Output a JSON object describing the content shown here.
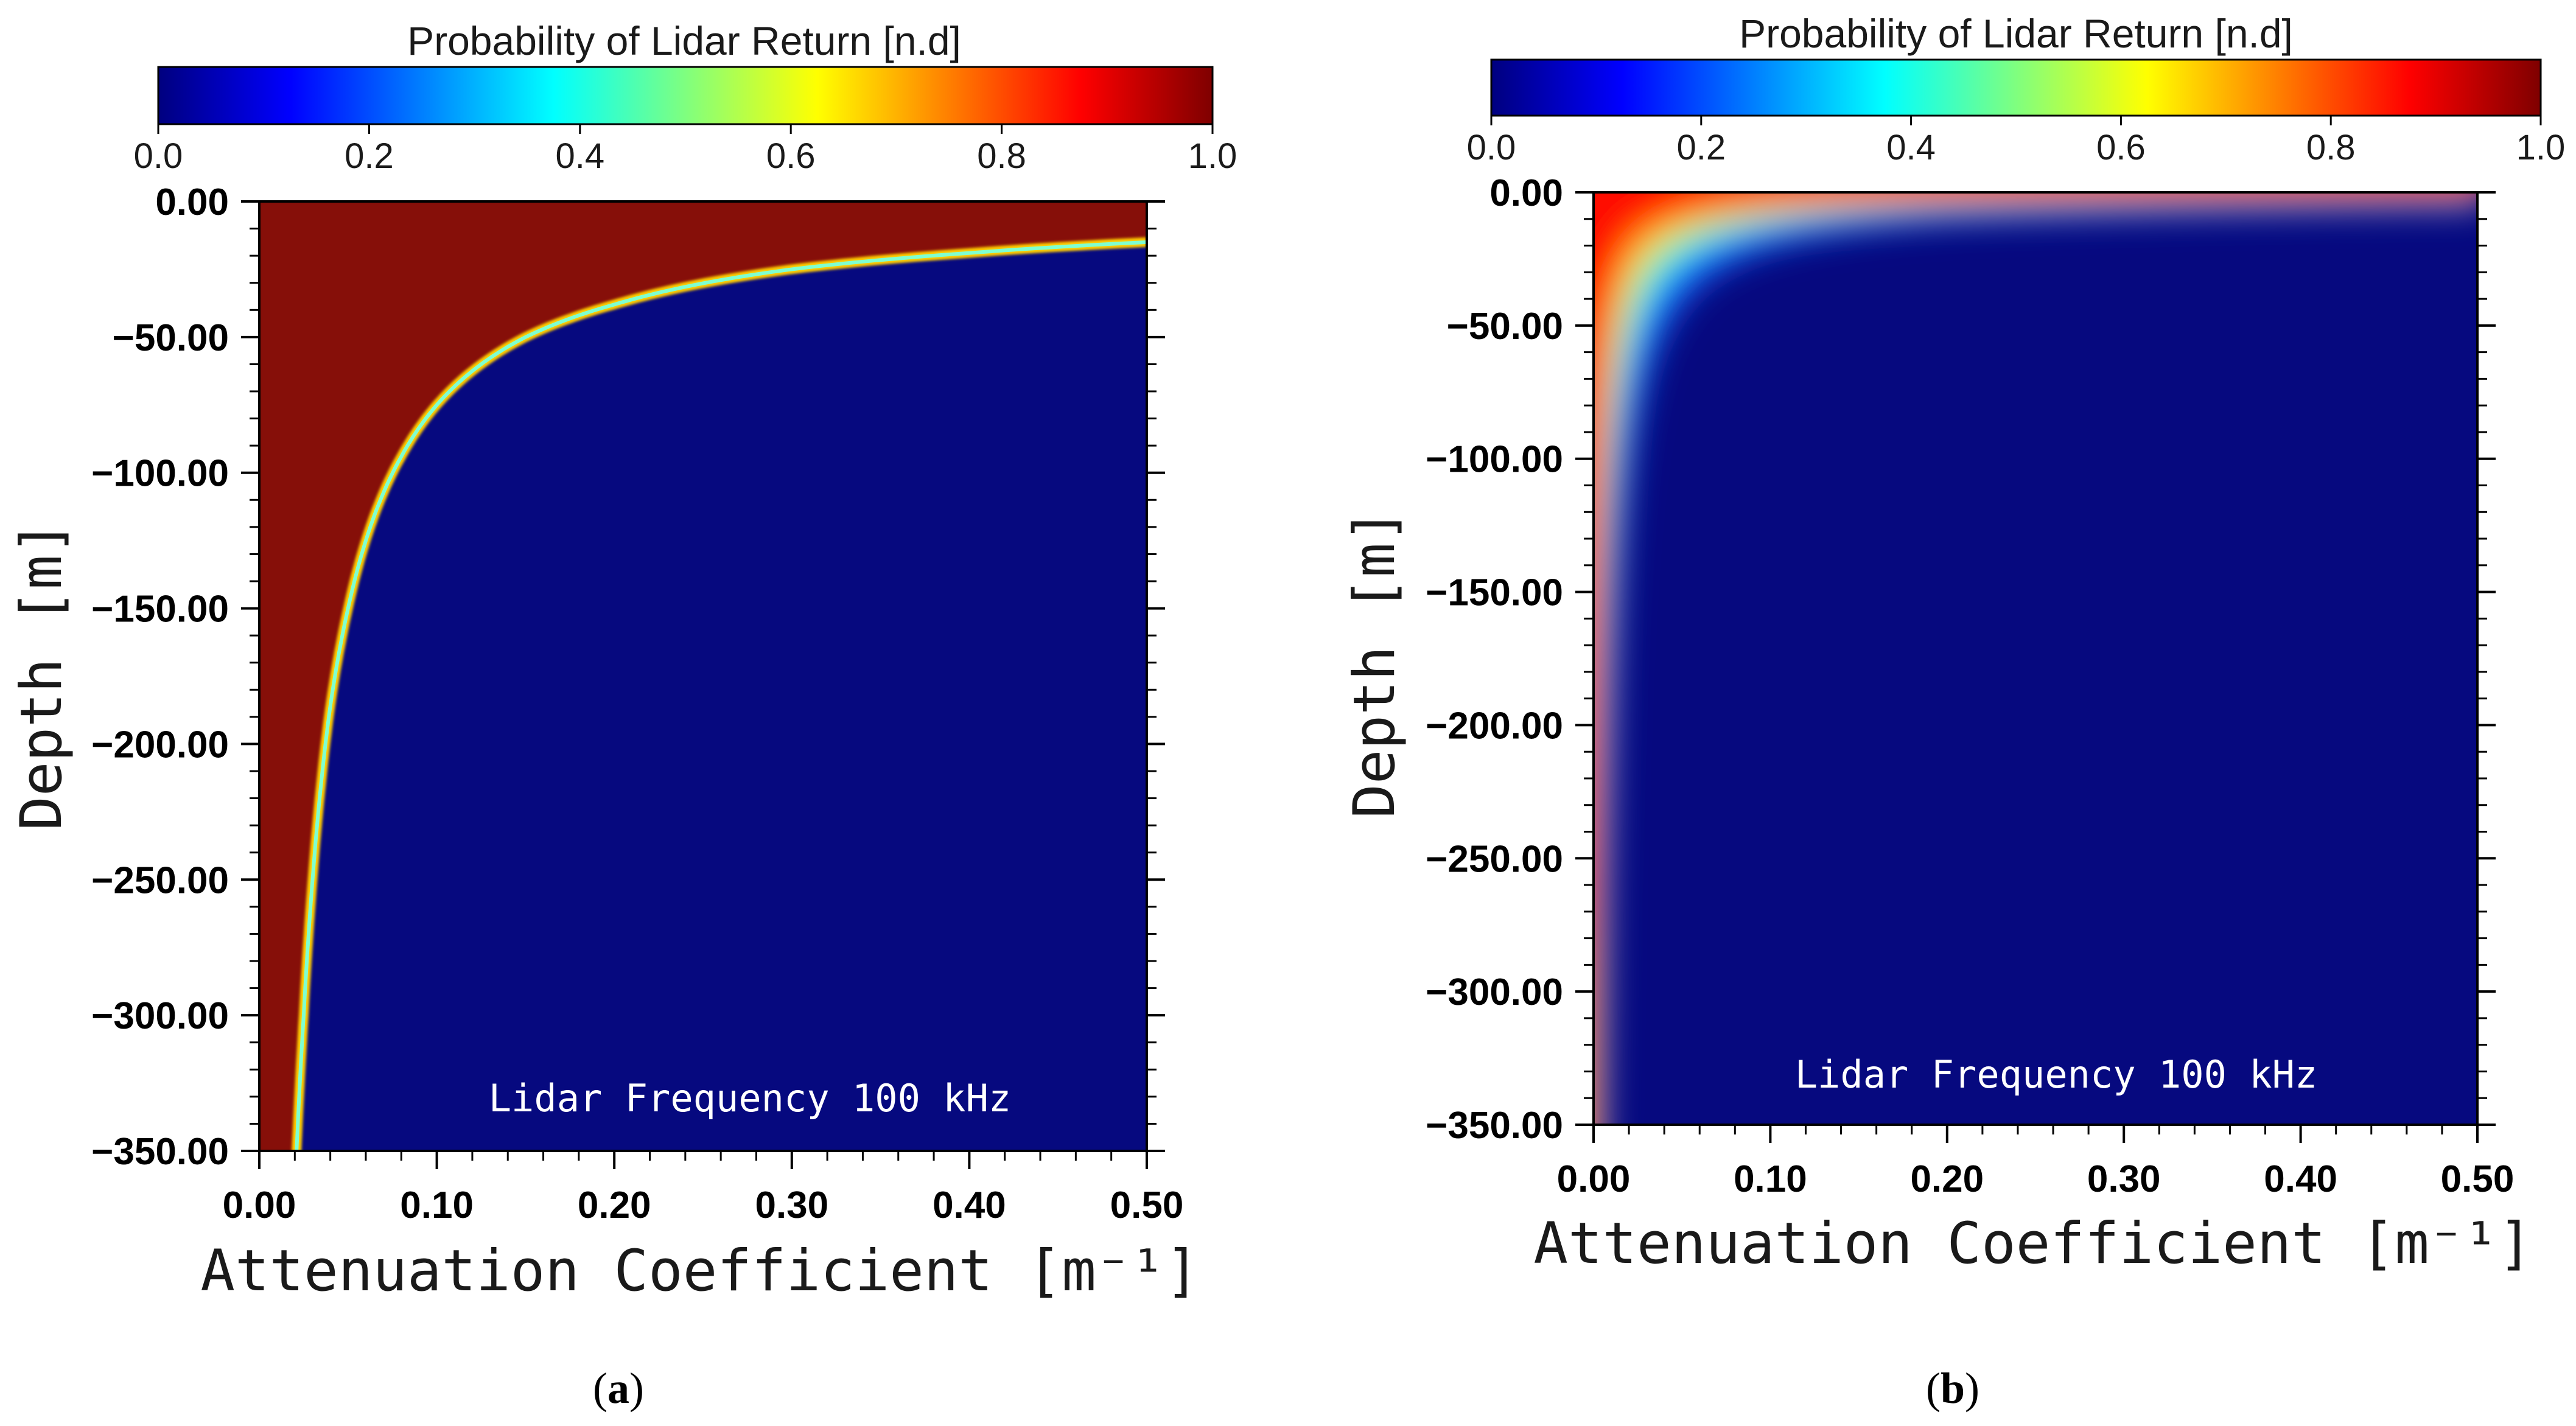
{
  "colors": {
    "jet_stops": [
      "#00007f",
      "#0000ff",
      "#007fff",
      "#00ffff",
      "#7fff7f",
      "#ffff00",
      "#ff7f00",
      "#ff0000",
      "#7f0000"
    ],
    "panel_low": "#06097f",
    "panel_high": "#860f09",
    "annotation_text": "#ffffff"
  },
  "chart_data": [
    {
      "id": "a",
      "type": "heatmap",
      "caption": "a",
      "colorbar": {
        "title": "Probability of Lidar Return [n.d]",
        "ticks": [
          "0.0",
          "0.2",
          "0.4",
          "0.6",
          "0.8",
          "1.0"
        ],
        "range": [
          0,
          1
        ]
      },
      "xlabel": "Attenuation Coefficient [m⁻¹]",
      "ylabel": "Depth [m]",
      "xlim": [
        0,
        0.5
      ],
      "ylim": [
        -350,
        0
      ],
      "xticks": [
        "0.00",
        "0.10",
        "0.20",
        "0.30",
        "0.40",
        "0.50"
      ],
      "yticks": [
        "0.00",
        "−50.00",
        "−100.00",
        "−150.00",
        "−200.00",
        "−250.00",
        "−300.00",
        "−350.00"
      ],
      "annotation": "Lidar Frequency 100 kHz",
      "boundary": {
        "description": "transition from probability 1.0 (upper-left) to 0.0 (lower-right)",
        "attenuation": [
          0.021,
          0.025,
          0.03,
          0.04,
          0.05,
          0.06,
          0.08,
          0.1,
          0.15,
          0.2,
          0.3,
          0.4,
          0.5
        ],
        "depth": [
          -350,
          -300,
          -250,
          -186,
          -150,
          -125,
          -94,
          -75,
          -50,
          -38,
          -25,
          -19,
          -15
        ]
      }
    },
    {
      "id": "b",
      "type": "heatmap",
      "caption": "b",
      "colorbar": {
        "title": "Probability of Lidar Return [n.d]",
        "ticks": [
          "0.0",
          "0.2",
          "0.4",
          "0.6",
          "0.8",
          "1.0"
        ],
        "range": [
          0,
          1
        ]
      },
      "xlabel": "Attenuation Coefficient [m⁻¹]",
      "ylabel": "Depth [m]",
      "xlim": [
        0,
        0.5
      ],
      "ylim": [
        -350,
        0
      ],
      "xticks": [
        "0.00",
        "0.10",
        "0.20",
        "0.30",
        "0.40",
        "0.50"
      ],
      "yticks": [
        "0.00",
        "−50.00",
        "−100.00",
        "−150.00",
        "−200.00",
        "−250.00",
        "−300.00",
        "−350.00"
      ],
      "annotation": "Lidar Frequency 100 kHz",
      "boundary": {
        "description": "probability decays quickly; high values confined near surface and low attenuation",
        "attenuation": [
          0.002,
          0.003,
          0.005,
          0.01,
          0.02,
          0.05,
          0.1,
          0.2,
          0.3,
          0.5
        ],
        "depth": [
          -350,
          -250,
          -150,
          -80,
          -40,
          -16,
          -8,
          -4,
          -3,
          -2
        ]
      }
    }
  ]
}
